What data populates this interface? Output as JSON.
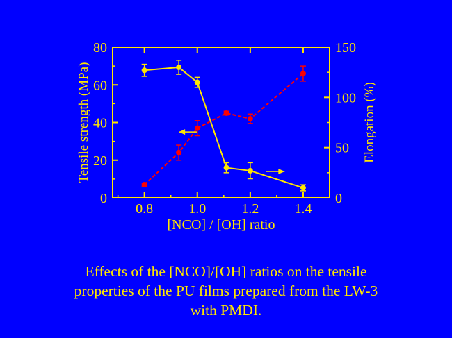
{
  "chart_data": {
    "type": "line",
    "xlabel": "[NCO] / [OH] ratio",
    "x_ticks": [
      0.8,
      1.0,
      1.2,
      1.4
    ],
    "xlim": [
      0.68,
      1.5
    ],
    "left_axis": {
      "label": "Tensile strength (MPa)",
      "ylim": [
        0,
        80
      ],
      "ticks": [
        0,
        20,
        40,
        60,
        80
      ],
      "color": "#ffe600"
    },
    "right_axis": {
      "label": "Elongation (%)",
      "ylim": [
        0,
        150
      ],
      "ticks": [
        0,
        50,
        100,
        150
      ],
      "color": "#ffe600"
    },
    "series": [
      {
        "axis": "left",
        "color": "#ff0000",
        "line_style": "dashed",
        "x": [
          0.8,
          0.93,
          1.0,
          1.11,
          1.2,
          1.4
        ],
        "y": [
          7,
          24,
          37,
          45,
          42,
          66
        ],
        "err": [
          0.8,
          4,
          4,
          1,
          2.5,
          4
        ]
      },
      {
        "axis": "right",
        "color": "#ffe600",
        "line_style": "solid",
        "x": [
          0.8,
          0.93,
          1.0,
          1.11,
          1.2,
          1.4
        ],
        "y": [
          127,
          130,
          115,
          30,
          27,
          10
        ],
        "err": [
          6,
          7,
          5,
          5,
          8,
          3
        ]
      }
    ],
    "annotations": [
      {
        "type": "arrow",
        "direction": "left",
        "x": [
          0.93,
          1.0
        ],
        "y_left": 35
      },
      {
        "type": "arrow",
        "direction": "right",
        "x": [
          1.26,
          1.33
        ],
        "y_left": 14
      }
    ]
  },
  "caption": [
    "Effects of the [NCO]/[OH] ratios on the tensile",
    "properties of the PU films prepared from the LW-3",
    "with PMDI."
  ]
}
